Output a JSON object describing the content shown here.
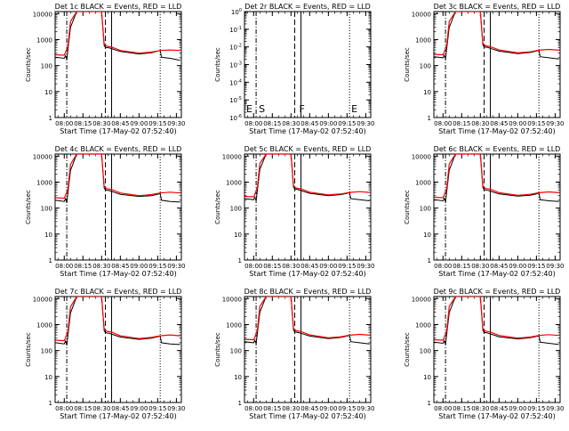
{
  "figure": {
    "xlabel": "Start Time (17-May-02 07:52:40)",
    "ylabel": "Counts/sec",
    "x_ticks": [
      "08:00",
      "08:15",
      "08:30",
      "08:45",
      "09:00",
      "09:15",
      "09:30"
    ],
    "y_ticks": [
      "1",
      "10",
      "100",
      "1000",
      "10000"
    ],
    "y_ticks_small": [
      "10^0",
      "10^-1",
      "10^-2",
      "10^-3",
      "10^-4",
      "10^-5",
      "10^-6"
    ],
    "colors": {
      "events": "#000000",
      "lld": "#ff0000"
    }
  },
  "chart_data": [
    {
      "title": "Det 1c BLACK = Events, RED = LLD",
      "type": "line",
      "xlabel": "Start Time (17-May-02 07:52:40)",
      "ylabel": "Counts/sec",
      "x_range": [
        "07:52:40",
        "09:34:00"
      ],
      "ylim": [
        1,
        12000
      ],
      "yscale": "log",
      "event_markers": [
        {
          "time": "08:02",
          "style": "dash-dot"
        },
        {
          "time": "08:33",
          "style": "dashed"
        },
        {
          "time": "08:38",
          "style": "solid"
        },
        {
          "time": "09:17",
          "style": "dotted"
        }
      ],
      "series": [
        {
          "name": "BLACK = Events",
          "x": [
            "07:53",
            "08:00",
            "08:01",
            "08:02",
            "08:05",
            "08:10",
            "08:20",
            "08:30",
            "08:32",
            "08:33",
            "08:36",
            "08:38",
            "08:45",
            "09:00",
            "09:10",
            "09:15",
            "09:17",
            "09:18",
            "09:25",
            "09:33"
          ],
          "y": [
            210,
            190,
            240,
            170,
            3000,
            12000,
            12000,
            12000,
            600,
            500,
            480,
            450,
            350,
            280,
            310,
            360,
            380,
            210,
            190,
            160
          ]
        },
        {
          "name": "RED = LLD",
          "x": [
            "07:53",
            "08:00",
            "08:01",
            "08:03",
            "08:05",
            "08:10",
            "08:20",
            "08:30",
            "08:32",
            "08:34",
            "08:38",
            "08:45",
            "09:00",
            "09:10",
            "09:17",
            "09:25",
            "09:33"
          ],
          "y": [
            260,
            250,
            320,
            600,
            5000,
            12000,
            12000,
            12000,
            700,
            560,
            520,
            380,
            300,
            330,
            380,
            400,
            380
          ]
        }
      ]
    },
    {
      "title": "Det 2r BLACK = Events, RED = LLD",
      "type": "line",
      "xlabel": "Start Time (17-May-02 07:52:40)",
      "ylabel": "Counts/sec",
      "x_range": [
        "07:52:40",
        "09:34:00"
      ],
      "ylim": [
        1e-06,
        1
      ],
      "yscale": "log",
      "event_markers": [
        {
          "time": "08:02",
          "style": "dash-dot"
        },
        {
          "time": "08:33",
          "style": "dashed"
        },
        {
          "time": "08:38",
          "style": "solid"
        },
        {
          "time": "09:17",
          "style": "dotted"
        }
      ],
      "annotations": [
        "E",
        "S",
        "F",
        "E"
      ],
      "series": []
    },
    {
      "title": "Det 3c BLACK = Events, RED = LLD",
      "type": "line",
      "xlabel": "Start Time (17-May-02 07:52:40)",
      "ylabel": "Counts/sec",
      "x_range": [
        "07:52:40",
        "09:34:00"
      ],
      "ylim": [
        1,
        12000
      ],
      "yscale": "log",
      "event_markers": [
        {
          "time": "08:02",
          "style": "dash-dot"
        },
        {
          "time": "08:33",
          "style": "dashed"
        },
        {
          "time": "08:38",
          "style": "solid"
        },
        {
          "time": "09:17",
          "style": "dotted"
        }
      ],
      "series": [
        {
          "name": "BLACK = Events",
          "x": [
            "07:53",
            "08:00",
            "08:01",
            "08:02",
            "08:05",
            "08:10",
            "08:20",
            "08:30",
            "08:32",
            "08:33",
            "08:36",
            "08:38",
            "08:45",
            "09:00",
            "09:10",
            "09:15",
            "09:17",
            "09:18",
            "09:25",
            "09:33"
          ],
          "y": [
            220,
            200,
            250,
            180,
            3000,
            12000,
            12000,
            12000,
            620,
            520,
            500,
            460,
            360,
            290,
            320,
            360,
            380,
            220,
            200,
            180
          ]
        },
        {
          "name": "RED = LLD",
          "x": [
            "07:53",
            "08:00",
            "08:01",
            "08:03",
            "08:05",
            "08:10",
            "08:20",
            "08:30",
            "08:32",
            "08:34",
            "08:38",
            "08:45",
            "09:00",
            "09:10",
            "09:17",
            "09:25",
            "09:33"
          ],
          "y": [
            270,
            260,
            330,
            620,
            5000,
            12000,
            12000,
            12000,
            720,
            580,
            540,
            400,
            310,
            340,
            390,
            420,
            390
          ]
        }
      ]
    },
    {
      "title": "Det 4c BLACK = Events, RED = LLD",
      "type": "line",
      "xlabel": "Start Time (17-May-02 07:52:40)",
      "ylabel": "Counts/sec",
      "x_range": [
        "07:52:40",
        "09:34:00"
      ],
      "ylim": [
        1,
        12000
      ],
      "yscale": "log",
      "event_markers": [
        {
          "time": "08:02",
          "style": "dash-dot"
        },
        {
          "time": "08:33",
          "style": "dashed"
        },
        {
          "time": "08:38",
          "style": "solid"
        },
        {
          "time": "09:17",
          "style": "dotted"
        }
      ],
      "series": [
        {
          "name": "BLACK = Events",
          "x": [
            "07:53",
            "08:00",
            "08:01",
            "08:02",
            "08:05",
            "08:10",
            "08:20",
            "08:30",
            "08:32",
            "08:33",
            "08:36",
            "08:38",
            "08:45",
            "09:00",
            "09:10",
            "09:15",
            "09:17",
            "09:18",
            "09:25",
            "09:33"
          ],
          "y": [
            200,
            180,
            230,
            160,
            2800,
            12000,
            12000,
            12000,
            600,
            500,
            470,
            440,
            340,
            280,
            300,
            340,
            370,
            200,
            180,
            170
          ]
        },
        {
          "name": "RED = LLD",
          "x": [
            "07:53",
            "08:00",
            "08:01",
            "08:03",
            "08:05",
            "08:10",
            "08:20",
            "08:30",
            "08:32",
            "08:34",
            "08:38",
            "08:45",
            "09:00",
            "09:10",
            "09:17",
            "09:25",
            "09:33"
          ],
          "y": [
            250,
            240,
            310,
            580,
            4800,
            12000,
            12000,
            12000,
            700,
            560,
            520,
            380,
            300,
            330,
            380,
            410,
            380
          ]
        }
      ]
    },
    {
      "title": "Det 5c BLACK = Events, RED = LLD",
      "type": "line",
      "xlabel": "Start Time (17-May-02 07:52:40)",
      "ylabel": "Counts/sec",
      "x_range": [
        "07:52:40",
        "09:34:00"
      ],
      "ylim": [
        1,
        12000
      ],
      "yscale": "log",
      "event_markers": [
        {
          "time": "08:02",
          "style": "dash-dot"
        },
        {
          "time": "08:33",
          "style": "dashed"
        },
        {
          "time": "08:38",
          "style": "solid"
        },
        {
          "time": "09:17",
          "style": "dotted"
        }
      ],
      "series": [
        {
          "name": "BLACK = Events",
          "x": [
            "07:53",
            "08:00",
            "08:01",
            "08:02",
            "08:05",
            "08:10",
            "08:20",
            "08:30",
            "08:32",
            "08:33",
            "08:36",
            "08:38",
            "08:45",
            "09:00",
            "09:10",
            "09:15",
            "09:17",
            "09:18",
            "09:25",
            "09:33"
          ],
          "y": [
            230,
            210,
            260,
            190,
            3100,
            12000,
            12000,
            12000,
            640,
            540,
            510,
            470,
            370,
            300,
            330,
            370,
            390,
            230,
            210,
            190
          ]
        },
        {
          "name": "RED = LLD",
          "x": [
            "07:53",
            "08:00",
            "08:01",
            "08:03",
            "08:05",
            "08:10",
            "08:20",
            "08:30",
            "08:32",
            "08:34",
            "08:38",
            "08:45",
            "09:00",
            "09:10",
            "09:17",
            "09:25",
            "09:33"
          ],
          "y": [
            280,
            270,
            340,
            640,
            5200,
            12000,
            12000,
            12000,
            740,
            590,
            550,
            410,
            320,
            350,
            400,
            430,
            400
          ]
        }
      ]
    },
    {
      "title": "Det 6c BLACK = Events, RED = LLD",
      "type": "line",
      "xlabel": "Start Time (17-May-02 07:52:40)",
      "ylabel": "Counts/sec",
      "x_range": [
        "07:52:40",
        "09:34:00"
      ],
      "ylim": [
        1,
        12000
      ],
      "yscale": "log",
      "event_markers": [
        {
          "time": "08:02",
          "style": "dash-dot"
        },
        {
          "time": "08:33",
          "style": "dashed"
        },
        {
          "time": "08:38",
          "style": "solid"
        },
        {
          "time": "09:17",
          "style": "dotted"
        }
      ],
      "series": [
        {
          "name": "BLACK = Events",
          "x": [
            "07:53",
            "08:00",
            "08:01",
            "08:02",
            "08:05",
            "08:10",
            "08:20",
            "08:30",
            "08:32",
            "08:33",
            "08:36",
            "08:38",
            "08:45",
            "09:00",
            "09:10",
            "09:15",
            "09:17",
            "09:18",
            "09:25",
            "09:33"
          ],
          "y": [
            210,
            190,
            240,
            170,
            2900,
            12000,
            12000,
            12000,
            610,
            510,
            480,
            450,
            350,
            290,
            310,
            350,
            380,
            210,
            190,
            180
          ]
        },
        {
          "name": "RED = LLD",
          "x": [
            "07:53",
            "08:00",
            "08:01",
            "08:03",
            "08:05",
            "08:10",
            "08:20",
            "08:30",
            "08:32",
            "08:34",
            "08:38",
            "08:45",
            "09:00",
            "09:10",
            "09:17",
            "09:25",
            "09:33"
          ],
          "y": [
            260,
            250,
            320,
            600,
            5000,
            12000,
            12000,
            12000,
            710,
            570,
            530,
            390,
            310,
            340,
            390,
            420,
            390
          ]
        }
      ]
    },
    {
      "title": "Det 7c BLACK = Events, RED = LLD",
      "type": "line",
      "xlabel": "Start Time (17-May-02 07:52:40)",
      "ylabel": "Counts/sec",
      "x_range": [
        "07:52:40",
        "09:34:00"
      ],
      "ylim": [
        1,
        12000
      ],
      "yscale": "log",
      "event_markers": [
        {
          "time": "08:02",
          "style": "dash-dot"
        },
        {
          "time": "08:33",
          "style": "dashed"
        },
        {
          "time": "08:38",
          "style": "solid"
        },
        {
          "time": "09:17",
          "style": "dotted"
        }
      ],
      "series": [
        {
          "name": "BLACK = Events",
          "x": [
            "07:53",
            "08:00",
            "08:01",
            "08:02",
            "08:05",
            "08:10",
            "08:20",
            "08:30",
            "08:32",
            "08:33",
            "08:36",
            "08:38",
            "08:45",
            "09:00",
            "09:10",
            "09:15",
            "09:17",
            "09:18",
            "09:25",
            "09:33"
          ],
          "y": [
            200,
            180,
            230,
            160,
            2800,
            12000,
            12000,
            12000,
            590,
            490,
            460,
            430,
            330,
            270,
            300,
            340,
            360,
            200,
            180,
            170
          ]
        },
        {
          "name": "RED = LLD",
          "x": [
            "07:53",
            "08:00",
            "08:01",
            "08:03",
            "08:05",
            "08:10",
            "08:20",
            "08:30",
            "08:32",
            "08:34",
            "08:38",
            "08:45",
            "09:00",
            "09:10",
            "09:17",
            "09:25",
            "09:33"
          ],
          "y": [
            250,
            240,
            310,
            580,
            4800,
            12000,
            12000,
            12000,
            690,
            550,
            510,
            370,
            290,
            320,
            370,
            400,
            370
          ]
        }
      ]
    },
    {
      "title": "Det 8c BLACK = Events, RED = LLD",
      "type": "line",
      "xlabel": "Start Time (17-May-02 07:52:40)",
      "ylabel": "Counts/sec",
      "x_range": [
        "07:52:40",
        "09:34:00"
      ],
      "ylim": [
        1,
        12000
      ],
      "yscale": "log",
      "event_markers": [
        {
          "time": "08:02",
          "style": "dash-dot"
        },
        {
          "time": "08:33",
          "style": "dashed"
        },
        {
          "time": "08:38",
          "style": "solid"
        },
        {
          "time": "09:17",
          "style": "dotted"
        }
      ],
      "series": [
        {
          "name": "BLACK = Events",
          "x": [
            "07:53",
            "08:00",
            "08:01",
            "08:02",
            "08:05",
            "08:10",
            "08:20",
            "08:30",
            "08:32",
            "08:33",
            "08:36",
            "08:38",
            "08:45",
            "09:00",
            "09:10",
            "09:15",
            "09:17",
            "09:18",
            "09:25",
            "09:33"
          ],
          "y": [
            220,
            200,
            250,
            180,
            3000,
            12000,
            12000,
            12000,
            620,
            520,
            490,
            460,
            360,
            290,
            320,
            360,
            380,
            220,
            200,
            180
          ]
        },
        {
          "name": "RED = LLD",
          "x": [
            "07:53",
            "08:00",
            "08:01",
            "08:03",
            "08:05",
            "08:10",
            "08:20",
            "08:30",
            "08:32",
            "08:34",
            "08:38",
            "08:45",
            "09:00",
            "09:10",
            "09:17",
            "09:25",
            "09:33"
          ],
          "y": [
            270,
            260,
            330,
            620,
            5000,
            12000,
            12000,
            12000,
            720,
            580,
            540,
            400,
            310,
            340,
            390,
            420,
            390
          ]
        }
      ]
    },
    {
      "title": "Det 9c BLACK = Events, RED = LLD",
      "type": "line",
      "xlabel": "Start Time (17-May-02 07:52:40)",
      "ylabel": "Counts/sec",
      "x_range": [
        "07:52:40",
        "09:34:00"
      ],
      "ylim": [
        1,
        12000
      ],
      "yscale": "log",
      "event_markers": [
        {
          "time": "08:02",
          "style": "dash-dot"
        },
        {
          "time": "08:33",
          "style": "dashed"
        },
        {
          "time": "08:38",
          "style": "solid"
        },
        {
          "time": "09:17",
          "style": "dotted"
        }
      ],
      "series": [
        {
          "name": "BLACK = Events",
          "x": [
            "07:53",
            "08:00",
            "08:01",
            "08:02",
            "08:05",
            "08:10",
            "08:20",
            "08:30",
            "08:32",
            "08:33",
            "08:36",
            "08:38",
            "08:45",
            "09:00",
            "09:10",
            "09:15",
            "09:17",
            "09:18",
            "09:25",
            "09:33"
          ],
          "y": [
            210,
            190,
            240,
            170,
            2900,
            12000,
            12000,
            12000,
            600,
            500,
            470,
            440,
            340,
            280,
            310,
            350,
            370,
            210,
            190,
            170
          ]
        },
        {
          "name": "RED = LLD",
          "x": [
            "07:53",
            "08:00",
            "08:01",
            "08:03",
            "08:05",
            "08:10",
            "08:20",
            "08:30",
            "08:32",
            "08:34",
            "08:38",
            "08:45",
            "09:00",
            "09:10",
            "09:17",
            "09:25",
            "09:33"
          ],
          "y": [
            260,
            250,
            320,
            600,
            5000,
            12000,
            12000,
            12000,
            700,
            560,
            520,
            380,
            300,
            330,
            380,
            410,
            380
          ]
        }
      ]
    }
  ]
}
